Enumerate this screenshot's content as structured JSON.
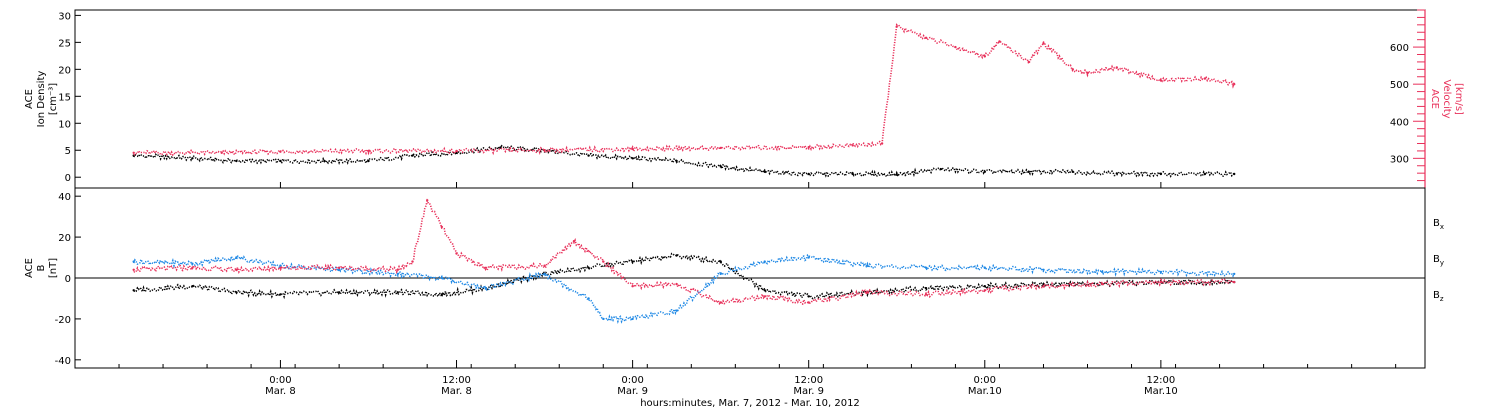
{
  "chart_data": [
    {
      "type": "scatter",
      "panel": "top",
      "ylabel_left": [
        "ACE",
        "Ion Density",
        "[cm⁻³]"
      ],
      "ylabel_right": [
        "ACE",
        "Velocity",
        "[km/s]"
      ],
      "ylim_left": [
        -2,
        31
      ],
      "ylim_right": [
        220,
        700
      ],
      "yticks_left": [
        "0",
        "5",
        "10",
        "15",
        "20",
        "25",
        "30"
      ],
      "yticks_left_values": [
        0,
        5,
        10,
        15,
        20,
        25,
        30
      ],
      "yticks_right": [
        "300",
        "400",
        "500",
        "600"
      ],
      "yticks_right_values": [
        300,
        400,
        500,
        600
      ],
      "series": [
        {
          "axis": "left",
          "color": "#000000",
          "x": [
            -10,
            -6,
            -3,
            0,
            3,
            6,
            9,
            12,
            15,
            18,
            21,
            24,
            27,
            30,
            33,
            36,
            39,
            42,
            45,
            48,
            51,
            54,
            57,
            60,
            63,
            65
          ],
          "y": [
            4,
            3.5,
            3,
            3,
            3,
            3,
            4,
            4.5,
            5.5,
            5,
            4,
            3.5,
            3,
            2,
            1,
            0.6,
            0.6,
            0.5,
            1.5,
            1,
            1,
            1,
            0.7,
            0.6,
            0.6,
            0.6
          ]
        },
        {
          "axis": "right",
          "color": "#e8305a",
          "x": [
            -10,
            -4,
            0,
            6,
            12,
            18,
            24,
            30,
            36,
            39,
            41,
            42,
            44,
            46,
            48,
            49,
            51,
            52,
            54,
            55,
            57,
            60,
            63,
            65
          ],
          "y": [
            315,
            315,
            318,
            320,
            320,
            322,
            325,
            328,
            330,
            335,
            340,
            655,
            625,
            600,
            575,
            615,
            560,
            610,
            540,
            530,
            545,
            510,
            515,
            500
          ]
        }
      ]
    },
    {
      "type": "scatter",
      "panel": "bottom",
      "ylabel": [
        "ACE",
        "B",
        "[nT]"
      ],
      "ylim": [
        -44,
        44
      ],
      "yticks": [
        "-40",
        "-20",
        "0",
        "20",
        "40"
      ],
      "yticks_values": [
        -40,
        -20,
        0,
        20,
        40
      ],
      "legend": [
        {
          "label": "B",
          "sub": "x",
          "color": "#000000"
        },
        {
          "label": "B",
          "sub": "y",
          "color": "#1e88e5"
        },
        {
          "label": "B",
          "sub": "z",
          "color": "#e8305a"
        }
      ],
      "series": [
        {
          "name": "Bx",
          "color": "#000000",
          "x": [
            -10,
            -6,
            -3,
            0,
            4,
            8,
            11,
            14,
            18,
            21,
            24,
            27,
            30,
            33,
            36,
            40,
            44,
            48,
            52,
            56,
            60,
            65
          ],
          "y": [
            -6,
            -4,
            -7,
            -8,
            -7,
            -7,
            -8,
            -5,
            2,
            5,
            8,
            11,
            8,
            -6,
            -9,
            -7,
            -5,
            -4,
            -3,
            -3,
            -2,
            -2
          ]
        },
        {
          "name": "By",
          "color": "#1e88e5",
          "x": [
            -10,
            -6,
            -3,
            0,
            4,
            8,
            11,
            14,
            18,
            21,
            22,
            24,
            27,
            30,
            33,
            36,
            40,
            44,
            48,
            52,
            56,
            60,
            65
          ],
          "y": [
            8,
            7,
            10,
            6,
            4,
            2,
            0,
            -5,
            2,
            -10,
            -20,
            -20,
            -16,
            2,
            8,
            10,
            6,
            5,
            5,
            4,
            3,
            3,
            2
          ]
        },
        {
          "name": "Bz",
          "color": "#e8305a",
          "x": [
            -10,
            -6,
            -3,
            0,
            4,
            8,
            9,
            10,
            11,
            12,
            14,
            18,
            20,
            22,
            24,
            27,
            30,
            33,
            36,
            40,
            44,
            48,
            52,
            56,
            60,
            65
          ],
          "y": [
            4,
            5,
            4,
            5,
            5,
            4,
            8,
            38,
            25,
            12,
            5,
            6,
            18,
            8,
            -4,
            -3,
            -12,
            -9,
            -12,
            -7,
            -8,
            -6,
            -4,
            -3,
            -2,
            -2
          ]
        }
      ]
    }
  ],
  "x_axis": {
    "xlim": [
      -14,
      78
    ],
    "ticks": [
      {
        "value": 0,
        "time": "0:00",
        "date": "Mar. 8"
      },
      {
        "value": 12,
        "time": "12:00",
        "date": "Mar. 8"
      },
      {
        "value": 24,
        "time": "0:00",
        "date": "Mar. 9"
      },
      {
        "value": 36,
        "time": "12:00",
        "date": "Mar. 9"
      },
      {
        "value": 48,
        "time": "0:00",
        "date": "Mar.10"
      },
      {
        "value": 60,
        "time": "12:00",
        "date": "Mar.10"
      }
    ],
    "xlabel": "hours:minutes, Mar.  7, 2012 - Mar. 10, 2012"
  }
}
